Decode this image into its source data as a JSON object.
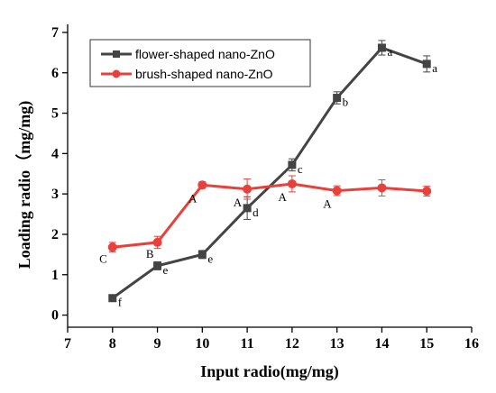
{
  "chart_data": {
    "type": "line",
    "xlabel": "Input radio(mg/mg)",
    "ylabel": "Loading radio（mg/mg)",
    "xlim": [
      7,
      16
    ],
    "ylim": [
      -0.3,
      7.2
    ],
    "x_ticks": [
      7,
      8,
      9,
      10,
      11,
      12,
      13,
      14,
      15,
      16
    ],
    "y_ticks": [
      0,
      1,
      2,
      3,
      4,
      5,
      6,
      7
    ],
    "legend_position": "top-left",
    "grid": false,
    "series": [
      {
        "name": "flower-shaped nano-ZnO",
        "color": "#444444",
        "marker": "square",
        "x": [
          8,
          9,
          10,
          11,
          12,
          13,
          14,
          15
        ],
        "y": [
          0.42,
          1.22,
          1.5,
          2.65,
          3.72,
          5.38,
          6.62,
          6.22
        ],
        "error": [
          0.06,
          0.1,
          0.1,
          0.28,
          0.15,
          0.15,
          0.18,
          0.2
        ],
        "labels": [
          "f",
          "e",
          "e",
          "d",
          "c",
          "b",
          "a",
          "a"
        ]
      },
      {
        "name": "brush-shaped nano-ZnO",
        "color": "#e8403a",
        "marker": "circle",
        "x": [
          8,
          9,
          10,
          11,
          12,
          13,
          14,
          15
        ],
        "y": [
          1.68,
          1.8,
          3.22,
          3.12,
          3.25,
          3.08,
          3.15,
          3.07
        ],
        "error": [
          0.12,
          0.15,
          0.08,
          0.25,
          0.2,
          0.12,
          0.2,
          0.12
        ],
        "labels": [
          "C",
          "B",
          "A",
          "A",
          "A",
          "A",
          "",
          ""
        ]
      }
    ]
  }
}
